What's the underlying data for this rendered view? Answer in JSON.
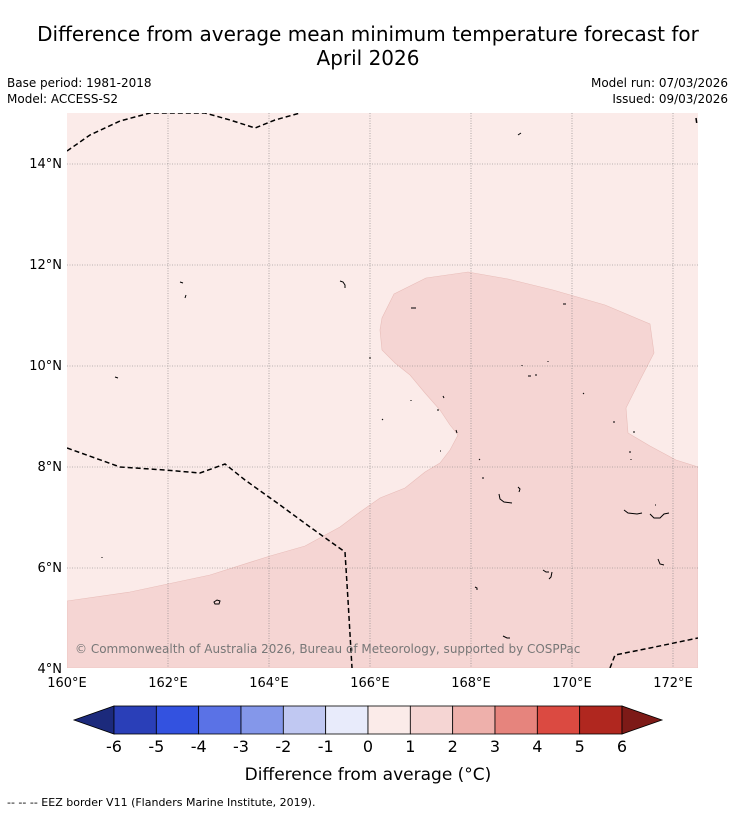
{
  "title": {
    "line1": "Difference from average mean minimum temperature forecast for",
    "line2": "April 2026"
  },
  "meta": {
    "base_period": "Base period: 1981-2018",
    "model": "Model: ACCESS-S2",
    "model_run": "Model run: 07/03/2026",
    "issued": "Issued: 09/03/2026"
  },
  "map": {
    "lon_ticks": [
      "160°E",
      "162°E",
      "164°E",
      "166°E",
      "168°E",
      "170°E",
      "172°E"
    ],
    "lat_ticks": [
      "4°N",
      "6°N",
      "8°N",
      "10°N",
      "12°N",
      "14°N"
    ],
    "copyright": "© Commonwealth of Australia 2026, Bureau of Meteorology, supported by COSPPac",
    "anomaly_classes": [
      {
        "range": "0 to 1",
        "color": "#fbebe9"
      },
      {
        "range": "1 to 2",
        "color": "#f5d5d3"
      }
    ]
  },
  "colorbar": {
    "ticks": [
      "-6",
      "-5",
      "-4",
      "-3",
      "-2",
      "-1",
      "0",
      "1",
      "2",
      "3",
      "4",
      "5",
      "6"
    ],
    "colors": [
      "#1c2a7c",
      "#2a3fb8",
      "#3352e0",
      "#5a72e6",
      "#8497ea",
      "#c0c8f2",
      "#e8ebfb",
      "#fbebe9",
      "#f5d5d3",
      "#eeb0ab",
      "#e6847d",
      "#db4a41",
      "#b0271f",
      "#7d1a17"
    ],
    "label": "Difference from average (°C)"
  },
  "footnote": "-- -- -- EEZ border V11 (Flanders Marine Institute, 2019)."
}
